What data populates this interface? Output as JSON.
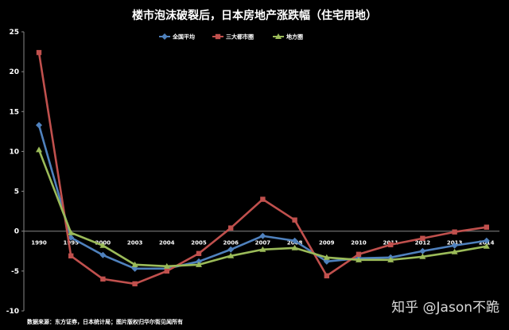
{
  "chart_data": {
    "type": "line",
    "title": "楼市泡沫破裂后，日本房地产涨跌幅（住宅用地）",
    "x": [
      "1990",
      "1995",
      "2000",
      "2003",
      "2004",
      "2005",
      "2006",
      "2007",
      "2008",
      "2009",
      "2010",
      "2011",
      "2012",
      "2013",
      "2014"
    ],
    "ylim": [
      -10,
      25
    ],
    "yticks": [
      -10,
      -5,
      0,
      5,
      10,
      15,
      20,
      25
    ],
    "grid": false,
    "legend_position": "top",
    "series": [
      {
        "name": "全国平均",
        "color": "#4f81bd",
        "marker": "diamond",
        "values": [
          13.3,
          -0.8,
          -3.0,
          -4.7,
          -4.7,
          -3.8,
          -2.3,
          -0.6,
          -1.2,
          -3.8,
          -3.4,
          -3.3,
          -2.5,
          -1.8,
          -1.2
        ]
      },
      {
        "name": "三大都市圈",
        "color": "#c0504d",
        "marker": "square",
        "values": [
          22.4,
          -3.1,
          -6.0,
          -6.6,
          -5.0,
          -2.8,
          0.4,
          4.0,
          1.4,
          -5.6,
          -2.9,
          -1.7,
          -0.9,
          -0.1,
          0.5
        ]
      },
      {
        "name": "地方圈",
        "color": "#9bbb59",
        "marker": "triangle",
        "values": [
          10.2,
          -0.2,
          -1.8,
          -4.2,
          -4.4,
          -4.2,
          -3.1,
          -2.3,
          -2.1,
          -3.3,
          -3.6,
          -3.6,
          -3.2,
          -2.6,
          -1.9
        ]
      }
    ]
  },
  "footer": {
    "source": "数据来源：东方证券，日本统计局；图片版权归华尔街见闻所有"
  },
  "watermark": "知乎 @Jason不跪"
}
